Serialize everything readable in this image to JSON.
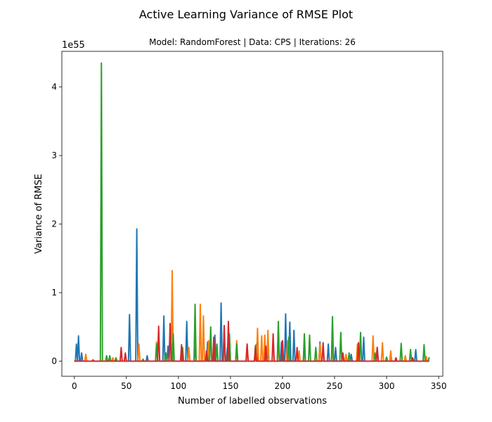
{
  "chart_data": {
    "type": "line",
    "title": "Active Learning Variance of RMSE Plot",
    "subtitle": "Model: RandomForest |   Data: CPS    |   Iterations: 26",
    "xlabel": "Number of labelled observations",
    "ylabel": "Variance of RMSE",
    "y_scale_label": "1e55",
    "xlim": [
      -12,
      354
    ],
    "ylim": [
      -0.22,
      4.52
    ],
    "xticks": [
      0,
      50,
      100,
      150,
      200,
      250,
      300,
      350
    ],
    "yticks": [
      0,
      1,
      2,
      3,
      4
    ],
    "grid": false,
    "legend": "none",
    "x_range": [
      0,
      341
    ],
    "baseline": 0,
    "series": [
      {
        "color": "#1f77b4",
        "points": [
          [
            2,
            0.25
          ],
          [
            4,
            0.37
          ],
          [
            7,
            0.12
          ],
          [
            53,
            0.68
          ],
          [
            60,
            1.93
          ],
          [
            70,
            0.08
          ],
          [
            86,
            0.66
          ],
          [
            90,
            0.22
          ],
          [
            94,
            0.25
          ],
          [
            108,
            0.58
          ],
          [
            116,
            0.22
          ],
          [
            128,
            0.28
          ],
          [
            135,
            0.38
          ],
          [
            141,
            0.85
          ],
          [
            147,
            0.2
          ],
          [
            156,
            0.15
          ],
          [
            175,
            0.25
          ],
          [
            186,
            0.15
          ],
          [
            199,
            0.28
          ],
          [
            203,
            0.69
          ],
          [
            207,
            0.57
          ],
          [
            211,
            0.45
          ],
          [
            221,
            0.26
          ],
          [
            236,
            0.28
          ],
          [
            244,
            0.25
          ],
          [
            251,
            0.2
          ],
          [
            266,
            0.1
          ],
          [
            278,
            0.35
          ],
          [
            291,
            0.2
          ],
          [
            304,
            0.1
          ],
          [
            328,
            0.17
          ]
        ]
      },
      {
        "color": "#ff7f0e",
        "points": [
          [
            11,
            0.1
          ],
          [
            37,
            0.05
          ],
          [
            62,
            0.25
          ],
          [
            79,
            0.28
          ],
          [
            94,
            1.32
          ],
          [
            110,
            0.2
          ],
          [
            121,
            0.83
          ],
          [
            124,
            0.66
          ],
          [
            129,
            0.3
          ],
          [
            144,
            0.45
          ],
          [
            156,
            0.3
          ],
          [
            166,
            0.25
          ],
          [
            176,
            0.48
          ],
          [
            180,
            0.37
          ],
          [
            183,
            0.38
          ],
          [
            186,
            0.45
          ],
          [
            196,
            0.3
          ],
          [
            205,
            0.3
          ],
          [
            216,
            0.15
          ],
          [
            236,
            0.25
          ],
          [
            248,
            0.22
          ],
          [
            261,
            0.1
          ],
          [
            272,
            0.25
          ],
          [
            287,
            0.37
          ],
          [
            296,
            0.27
          ],
          [
            304,
            0.15
          ],
          [
            318,
            0.08
          ],
          [
            338,
            0.07
          ]
        ]
      },
      {
        "color": "#2ca02c",
        "points": [
          [
            26,
            4.35
          ],
          [
            31,
            0.08
          ],
          [
            34,
            0.08
          ],
          [
            40,
            0.05
          ],
          [
            66,
            0.03
          ],
          [
            79,
            0.25
          ],
          [
            88,
            0.12
          ],
          [
            95,
            0.4
          ],
          [
            104,
            0.2
          ],
          [
            116,
            0.83
          ],
          [
            131,
            0.5
          ],
          [
            137,
            0.25
          ],
          [
            149,
            0.4
          ],
          [
            156,
            0.25
          ],
          [
            174,
            0.23
          ],
          [
            196,
            0.58
          ],
          [
            206,
            0.35
          ],
          [
            221,
            0.4
          ],
          [
            226,
            0.38
          ],
          [
            232,
            0.2
          ],
          [
            248,
            0.65
          ],
          [
            256,
            0.42
          ],
          [
            264,
            0.12
          ],
          [
            275,
            0.42
          ],
          [
            289,
            0.12
          ],
          [
            300,
            0.06
          ],
          [
            314,
            0.26
          ],
          [
            323,
            0.17
          ],
          [
            336,
            0.24
          ],
          [
            341,
            0.06
          ]
        ]
      },
      {
        "color": "#d62728",
        "points": [
          [
            18,
            0.02
          ],
          [
            45,
            0.2
          ],
          [
            49,
            0.12
          ],
          [
            81,
            0.51
          ],
          [
            92,
            0.55
          ],
          [
            103,
            0.24
          ],
          [
            127,
            0.15
          ],
          [
            134,
            0.35
          ],
          [
            144,
            0.52
          ],
          [
            148,
            0.58
          ],
          [
            166,
            0.25
          ],
          [
            174,
            0.2
          ],
          [
            184,
            0.22
          ],
          [
            191,
            0.4
          ],
          [
            200,
            0.3
          ],
          [
            214,
            0.2
          ],
          [
            239,
            0.27
          ],
          [
            258,
            0.12
          ],
          [
            273,
            0.27
          ],
          [
            291,
            0.2
          ],
          [
            309,
            0.05
          ],
          [
            325,
            0.05
          ]
        ]
      }
    ]
  }
}
